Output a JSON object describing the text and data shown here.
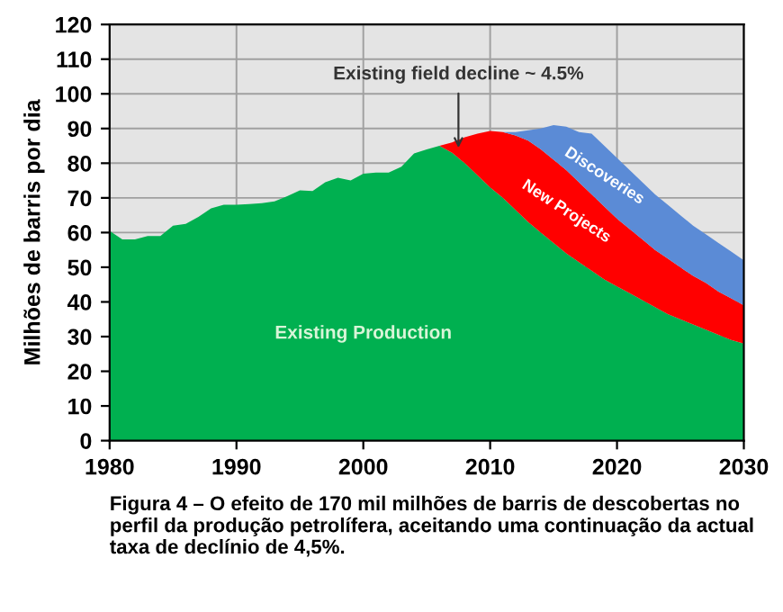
{
  "chart_data": {
    "type": "area",
    "stacked": true,
    "ylabel": "Milhões de barris por dia",
    "x": [
      1980,
      1981,
      1982,
      1983,
      1984,
      1985,
      1986,
      1987,
      1988,
      1989,
      1990,
      1991,
      1992,
      1993,
      1994,
      1995,
      1996,
      1997,
      1998,
      1999,
      2000,
      2001,
      2002,
      2003,
      2004,
      2005,
      2006,
      2007,
      2008,
      2009,
      2010,
      2011,
      2012,
      2013,
      2014,
      2015,
      2016,
      2017,
      2018,
      2019,
      2020,
      2021,
      2022,
      2023,
      2024,
      2025,
      2026,
      2027,
      2028,
      2029,
      2030
    ],
    "series": [
      {
        "name": "Existing Production",
        "color": "#00b050",
        "values": [
          60.5,
          58,
          58,
          59,
          59,
          62,
          62.5,
          64.5,
          67,
          68,
          68,
          68.2,
          68.5,
          69,
          70.5,
          72.2,
          72,
          74.5,
          75.8,
          75,
          77,
          77.3,
          77.3,
          79,
          82.8,
          84,
          85,
          83,
          80,
          76.5,
          73,
          70,
          66.5,
          63,
          60,
          57,
          54,
          51.5,
          49,
          46.5,
          44.5,
          42.5,
          40.5,
          38.5,
          36.5,
          35,
          33.5,
          32,
          30.5,
          29,
          28
        ]
      },
      {
        "name": "New Projects",
        "color": "#ff0000",
        "values": [
          0,
          0,
          0,
          0,
          0,
          0,
          0,
          0,
          0,
          0,
          0,
          0,
          0,
          0,
          0,
          0,
          0,
          0,
          0,
          0,
          0,
          0,
          0,
          0,
          0,
          0,
          0,
          3,
          7.5,
          12,
          16.3,
          19,
          21.5,
          23.5,
          24,
          24,
          24,
          23,
          22,
          21,
          19.5,
          18.5,
          17.5,
          16.5,
          16,
          15,
          14,
          13.5,
          12.5,
          12,
          11
        ]
      },
      {
        "name": "Discoveries",
        "color": "#5b8bd6",
        "values": [
          0,
          0,
          0,
          0,
          0,
          0,
          0,
          0,
          0,
          0,
          0,
          0,
          0,
          0,
          0,
          0,
          0,
          0,
          0,
          0,
          0,
          0,
          0,
          0,
          0,
          0,
          0,
          0,
          0,
          0,
          0,
          0,
          1,
          3,
          6,
          10,
          12.5,
          14.5,
          17.5,
          17.5,
          17.5,
          17,
          16.5,
          16,
          15.5,
          15,
          14.5,
          14,
          14,
          13.5,
          13
        ]
      }
    ],
    "xlim": [
      1980,
      2030
    ],
    "xticks": [
      1980,
      1990,
      2000,
      2010,
      2020,
      2030
    ],
    "ylim": [
      0,
      120
    ],
    "yticks": [
      0,
      10,
      20,
      30,
      40,
      50,
      60,
      70,
      80,
      90,
      100,
      110,
      120
    ],
    "grid": true,
    "legend": false,
    "annotations": [
      {
        "text": "Existing field decline ~ 4.5%",
        "x": 2007.5,
        "y": 83
      },
      "Figura 4 – O efeito de 170 mil milhões de barris de descobertas no perfil da produção petrolífera, aceitando uma continuação da actual taxa de declínio de 4,5%."
    ]
  }
}
